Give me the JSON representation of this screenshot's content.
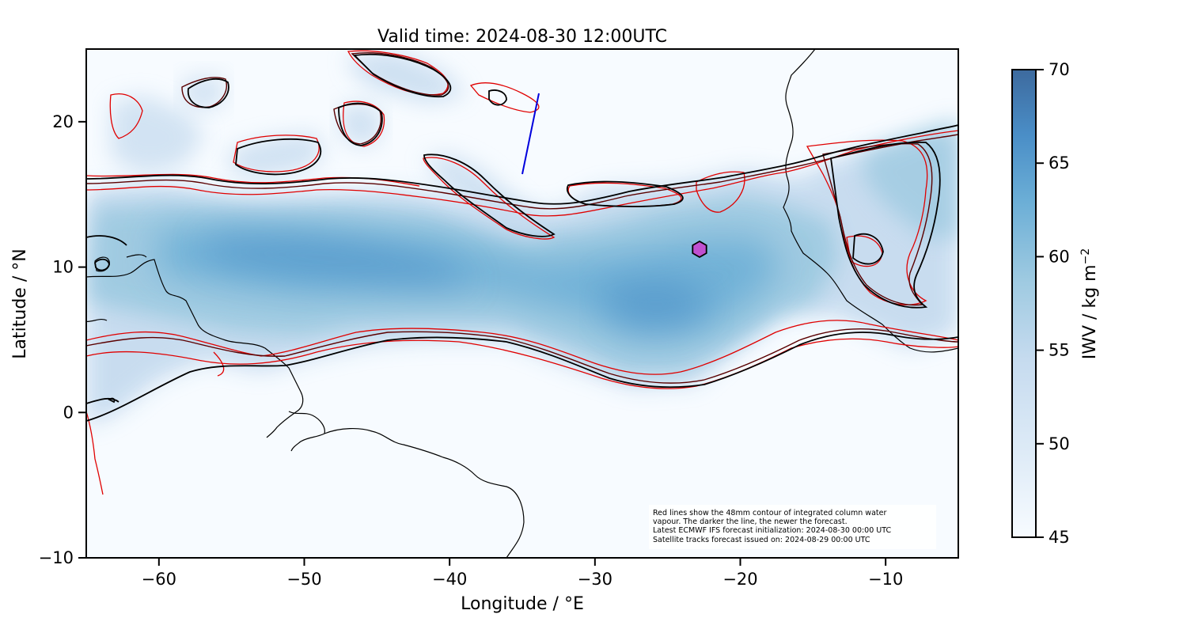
{
  "title": "Valid time: 2024-08-30 12:00UTC",
  "x_axis": {
    "label": "Longitude / °E",
    "range": [
      -65,
      -5
    ],
    "ticks": [
      -60,
      -50,
      -40,
      -30,
      -20,
      -10
    ],
    "tick_labels": [
      "−60",
      "−50",
      "−40",
      "−30",
      "−20",
      "−10"
    ]
  },
  "y_axis": {
    "label": "Latitude / °N",
    "range": [
      -10,
      25
    ],
    "ticks": [
      20,
      10,
      0,
      -10
    ],
    "tick_labels": [
      "20",
      "10",
      "0",
      "−10"
    ]
  },
  "colorbar": {
    "label": "IWV / kg m",
    "label_superscript": "−2",
    "range": [
      45,
      70
    ],
    "ticks": [
      70,
      65,
      60,
      55,
      50,
      45
    ],
    "tick_labels": [
      "70",
      "65",
      "60",
      "55",
      "50",
      "45"
    ],
    "colors": [
      "#f7fbff",
      "#deebf7",
      "#c6dbef",
      "#9ecae1",
      "#6baed6",
      "#4a8ec7",
      "#3d6a9e"
    ]
  },
  "annotation": {
    "lines": [
      "Red lines show the 48mm contour of integrated column water",
      "vapour. The darker the line, the newer the forecast.",
      "Latest ECMWF IFS forecast initialization: 2024-08-30 00:00 UTC",
      "Satellite tracks forecast issued on: 2024-08-29 00:00 UTC"
    ]
  },
  "markers": {
    "hexagon": {
      "lon": -22.8,
      "lat": 11.2,
      "color": "#c050d0"
    },
    "satellite_track": {
      "from": {
        "lon": -35.0,
        "lat": 16.4
      },
      "to": {
        "lon": -33.8,
        "lat": 22.0
      },
      "color": "#0000dd"
    }
  },
  "contour_colors": {
    "newest": "#000000",
    "mid": "#5a0000",
    "old": "#e00000"
  },
  "chart_data": {
    "type": "heatmap",
    "title": "Valid time: 2024-08-30 12:00UTC",
    "xlabel": "Longitude / °E",
    "ylabel": "Latitude / °N",
    "xlim": [
      -65,
      -5
    ],
    "ylim": [
      -10,
      25
    ],
    "variable": "IWV / kg m^-2",
    "colorbar_range": [
      45,
      70
    ],
    "contour_level_mm": 48,
    "grid": false
  }
}
